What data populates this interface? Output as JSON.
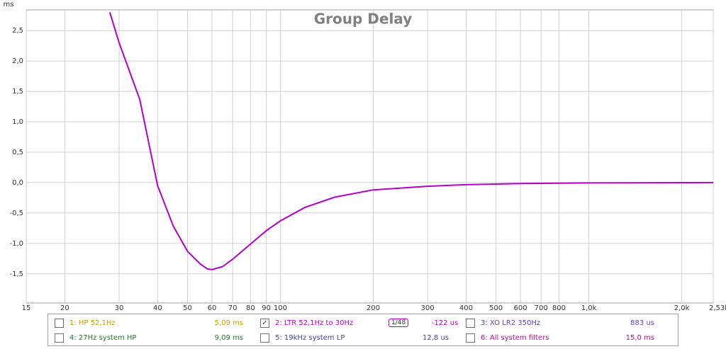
{
  "chart_data": {
    "type": "line",
    "title": "Group Delay",
    "y_label": "ms",
    "x": [
      28,
      30,
      35,
      40,
      45,
      50,
      55,
      58,
      60,
      65,
      70,
      80,
      90,
      100,
      120,
      150,
      200,
      300,
      400,
      600,
      1000,
      2530
    ],
    "series": [
      {
        "name": "2: LTR 52,1Hz to 30Hz",
        "color": "#b400c8",
        "values": [
          2.8,
          2.3,
          1.37,
          -0.05,
          -0.72,
          -1.13,
          -1.34,
          -1.42,
          -1.43,
          -1.38,
          -1.26,
          -1.01,
          -0.79,
          -0.63,
          -0.41,
          -0.24,
          -0.12,
          -0.06,
          -0.035,
          -0.015,
          -0.005,
          0.0
        ]
      }
    ],
    "xlog": true,
    "grid": true,
    "xlim": [
      15,
      2530
    ],
    "ylim": [
      -1.98,
      2.84
    ],
    "xticks": [
      15,
      20,
      30,
      40,
      50,
      60,
      70,
      80,
      90,
      100,
      200,
      300,
      400,
      500,
      600,
      700,
      800,
      {
        "value": 1000,
        "label": "1,0k"
      },
      {
        "value": 2000,
        "label": "2,0k"
      },
      {
        "value": 2530,
        "label": "2,53k Hz"
      }
    ],
    "yticks": [
      {
        "value": 2.5,
        "label": "2,5"
      },
      {
        "value": 2,
        "label": "2,0"
      },
      {
        "value": 1.5,
        "label": "1,5"
      },
      {
        "value": 1,
        "label": "1,0"
      },
      {
        "value": 0.5,
        "label": "0,5"
      },
      {
        "value": 0,
        "label": "0,0"
      },
      {
        "value": -0.5,
        "label": "-0,5"
      },
      {
        "value": -1,
        "label": "-1,0"
      },
      {
        "value": -1.5,
        "label": "-1,5"
      }
    ]
  },
  "legend": [
    {
      "label": "1: HP 52,1Hz",
      "value": "5,09 ms",
      "color": "#c8a000",
      "checked": false
    },
    {
      "label": "2: LTR 52,1Hz to 30Hz",
      "value": "-122 us",
      "color": "#b400c8",
      "checked": true,
      "smoothing": "1/48"
    },
    {
      "label": "3: XO LR2 350Hz",
      "value": "883 us",
      "color": "#6040c0",
      "checked": false
    },
    {
      "label": "4: 27Hz system HP",
      "value": "9,09 ms",
      "color": "#208020",
      "checked": false
    },
    {
      "label": "5: 19kHz system LP",
      "value": "12,8 us",
      "color": "#4040b0",
      "checked": false
    },
    {
      "label": "6: All system filters",
      "value": "15,0 ms",
      "color": "#c000a0",
      "checked": false
    }
  ]
}
